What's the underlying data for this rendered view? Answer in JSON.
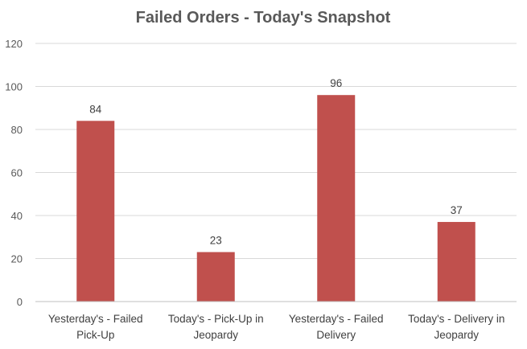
{
  "chart_data": {
    "type": "bar",
    "title": "Failed Orders - Today's Snapshot",
    "categories": [
      [
        "Yesterday's - Failed",
        "Pick-Up"
      ],
      [
        "Today's  - Pick-Up in",
        "Jeopardy"
      ],
      [
        "Yesterday's - Failed",
        "Delivery"
      ],
      [
        "Today's  - Delivery in",
        "Jeopardy"
      ]
    ],
    "values": [
      84,
      23,
      96,
      37
    ],
    "ylim": [
      0,
      120
    ],
    "yticks": [
      0,
      20,
      40,
      60,
      80,
      100,
      120
    ],
    "grid": true,
    "legend": "none",
    "bar_color": "#c0504d",
    "xlabel": "",
    "ylabel": ""
  }
}
